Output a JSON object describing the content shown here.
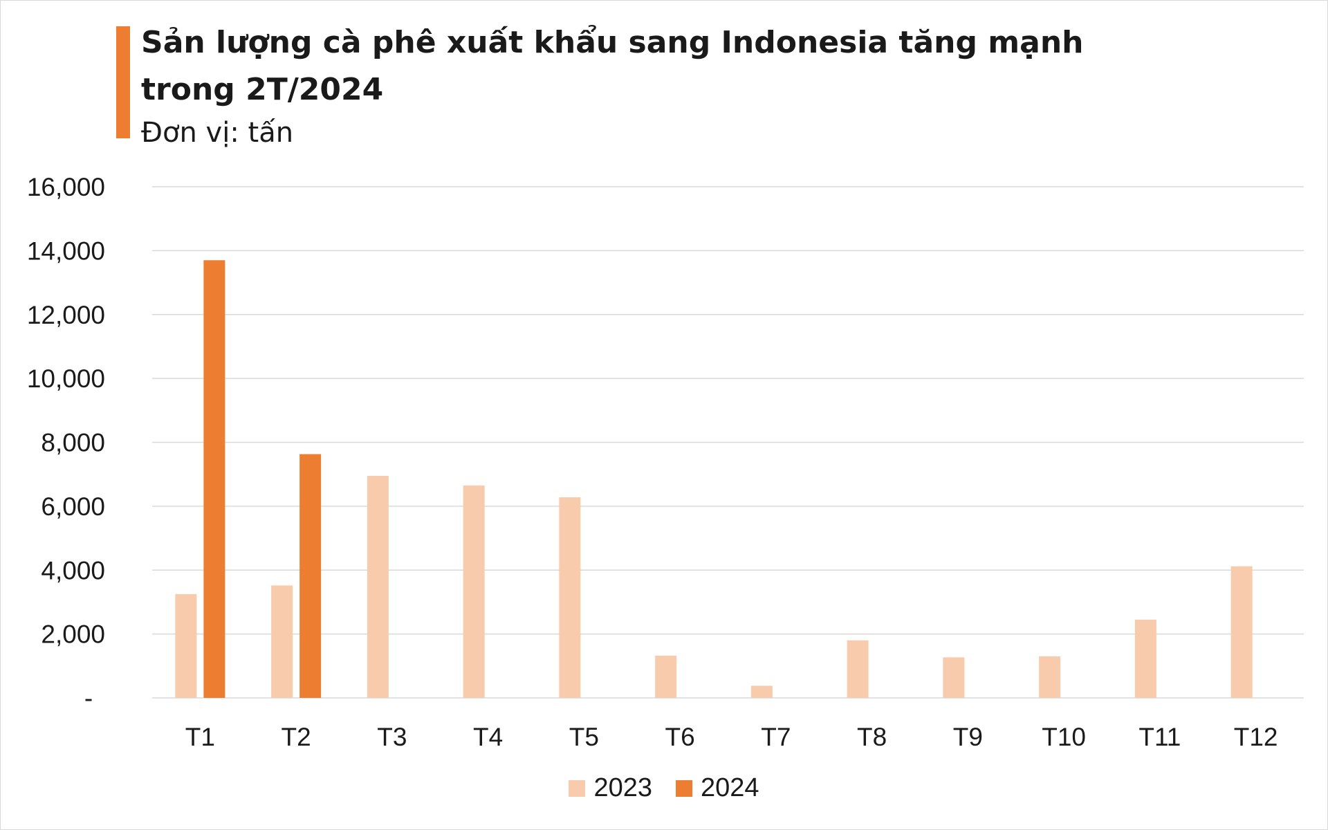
{
  "chart_data": {
    "type": "bar",
    "title": "Sản lượng cà phê xuất khẩu sang Indonesia tăng mạnh\ntrong 2T/2024",
    "subtitle": "Đơn vị: tấn",
    "categories": [
      "T1",
      "T2",
      "T3",
      "T4",
      "T5",
      "T6",
      "T7",
      "T8",
      "T9",
      "T10",
      "T11",
      "T12"
    ],
    "series": [
      {
        "name": "2023",
        "color": "#f8cbad",
        "values": [
          3250,
          3520,
          6950,
          6650,
          6280,
          1320,
          380,
          1800,
          1270,
          1300,
          2450,
          4120
        ]
      },
      {
        "name": "2024",
        "color": "#ed7d31",
        "values": [
          13700,
          7630,
          null,
          null,
          null,
          null,
          null,
          null,
          null,
          null,
          null,
          null
        ]
      }
    ],
    "y_ticks": [
      "-",
      "2,000",
      "4,000",
      "6,000",
      "8,000",
      "10,000",
      "12,000",
      "14,000",
      "16,000"
    ],
    "ylim": [
      0,
      16000
    ],
    "grid": true,
    "legend_position": "bottom"
  }
}
